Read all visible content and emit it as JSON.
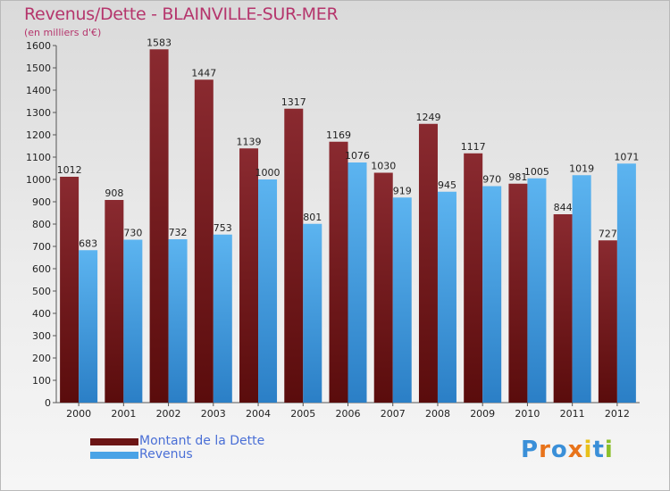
{
  "header": {
    "title": "Revenus/Dette - BLAINVILLE-SUR-MER",
    "subtitle": "(en milliers d'€)"
  },
  "legend": {
    "items": [
      {
        "label": "Montant de la Dette",
        "color": "#6b1414"
      },
      {
        "label": "Revenus",
        "color": "#4aa3e6"
      }
    ]
  },
  "logo": {
    "text": "Proxiti",
    "letters": [
      "P",
      "r",
      "o",
      "x",
      "i",
      "t",
      "i"
    ],
    "colors": [
      "#3a8fd8",
      "#e8731a",
      "#3a8fd8",
      "#e8731a",
      "#e8c01a",
      "#3a8fd8",
      "#8bbf2a"
    ]
  },
  "colors": {
    "title": "#b5356c",
    "dette": "#6b1414",
    "dette_light": "#8a2a30",
    "revenus": "#4aa3e6",
    "revenus_dark": "#2b7fc6"
  },
  "chart_data": {
    "type": "bar",
    "title": "Revenus/Dette - BLAINVILLE-SUR-MER",
    "ylabel": "(en milliers d'€)",
    "xlabel": "",
    "ylim": [
      0,
      1600
    ],
    "ytick_step": 100,
    "grid": false,
    "legend_position": "bottom-left",
    "categories": [
      "2000",
      "2001",
      "2002",
      "2003",
      "2004",
      "2005",
      "2006",
      "2007",
      "2008",
      "2009",
      "2010",
      "2011",
      "2012"
    ],
    "series": [
      {
        "name": "Montant de la Dette",
        "values": [
          1012,
          908,
          1583,
          1447,
          1139,
          1317,
          1169,
          1030,
          1249,
          1117,
          981,
          844,
          727
        ]
      },
      {
        "name": "Revenus",
        "values": [
          683,
          730,
          732,
          753,
          1000,
          801,
          1076,
          919,
          945,
          970,
          1005,
          1019,
          1071
        ]
      }
    ]
  }
}
